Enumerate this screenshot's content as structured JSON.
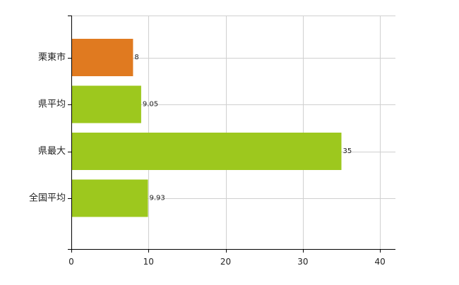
{
  "chart_data": {
    "type": "bar",
    "orientation": "horizontal",
    "categories": [
      "栗東市",
      "県平均",
      "県最大",
      "全国平均"
    ],
    "values": [
      8,
      9.05,
      35,
      9.93
    ],
    "data_labels": [
      "8",
      "9.05",
      "35",
      "9.93"
    ],
    "bar_colors": [
      "#e07a20",
      "#9dc81e",
      "#9dc81e",
      "#9dc81e"
    ],
    "xlim": [
      0,
      42
    ],
    "xticks": [
      0,
      10,
      20,
      30,
      40
    ],
    "grid": true,
    "title": "",
    "xlabel": "",
    "ylabel": ""
  },
  "colors": {
    "highlight": "#e07a20",
    "bar": "#9dc81e",
    "grid": "#d0d0d0",
    "axis": "#000000"
  }
}
